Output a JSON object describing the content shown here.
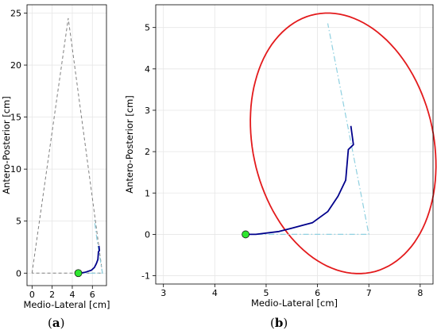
{
  "colors": {
    "trajectory": "#00008b",
    "start_marker": "#2ee62e",
    "ellipse": "#e31a1c",
    "triangle": "#808080",
    "projection": "#8fd0e0",
    "grid": "#e6e6e6"
  },
  "captions": {
    "a_open": "(",
    "a_letter": "a",
    "a_close": ")",
    "b_open": "(",
    "b_letter": "b",
    "b_close": ")"
  },
  "chart_data": [
    {
      "id": "a",
      "type": "line",
      "title": "",
      "xlabel": "Medio-Lateral [cm]",
      "ylabel": "Antero-Posterior [cm]",
      "xlim": [
        -0.5,
        7.4
      ],
      "ylim": [
        -1.2,
        25.8
      ],
      "xticks": [
        0,
        2,
        4,
        6
      ],
      "yticks": [
        0,
        5,
        10,
        15,
        20,
        25
      ],
      "grid": true,
      "series": [
        {
          "role": "support-triangle",
          "style": "dashed",
          "x": [
            0,
            3.6,
            7.0,
            0
          ],
          "y": [
            0,
            24.5,
            0,
            0
          ]
        },
        {
          "role": "projection",
          "style": "dash-dot",
          "x": [
            4.6,
            7.0,
            6.5,
            6.2
          ],
          "y": [
            0,
            0,
            2.9,
            5.1
          ]
        },
        {
          "role": "trajectory",
          "style": "solid",
          "x": [
            4.6,
            4.8,
            5.25,
            5.5,
            5.9,
            6.2,
            6.4,
            6.55,
            6.6,
            6.7,
            6.65
          ],
          "y": [
            0,
            0,
            0.07,
            0.15,
            0.28,
            0.55,
            0.92,
            1.31,
            2.05,
            2.17,
            2.62
          ]
        },
        {
          "role": "start",
          "style": "marker",
          "x": [
            4.6
          ],
          "y": [
            0
          ]
        }
      ]
    },
    {
      "id": "b",
      "type": "line",
      "title": "",
      "xlabel": "Medio-Lateral [cm]",
      "ylabel": "Antero-Posterior [cm]",
      "xlim": [
        2.85,
        8.25
      ],
      "ylim": [
        -1.2,
        5.55
      ],
      "xticks": [
        3,
        4,
        5,
        6,
        7,
        8
      ],
      "yticks": [
        -1,
        0,
        1,
        2,
        3,
        4,
        5
      ],
      "grid": true,
      "ellipse": {
        "cx": 6.5,
        "cy": 2.2,
        "rx": 1.77,
        "ry": 3.17,
        "angle_deg": 8
      },
      "series": [
        {
          "role": "projection",
          "style": "dash-dot",
          "x": [
            4.6,
            7.0,
            6.2
          ],
          "y": [
            0,
            0,
            5.1
          ]
        },
        {
          "role": "trajectory",
          "style": "solid",
          "x": [
            4.6,
            4.8,
            5.25,
            5.5,
            5.9,
            6.2,
            6.4,
            6.55,
            6.6,
            6.7,
            6.65
          ],
          "y": [
            0,
            0,
            0.07,
            0.15,
            0.28,
            0.55,
            0.92,
            1.31,
            2.05,
            2.17,
            2.62
          ]
        },
        {
          "role": "start",
          "style": "marker",
          "x": [
            4.6
          ],
          "y": [
            0
          ]
        }
      ]
    }
  ]
}
